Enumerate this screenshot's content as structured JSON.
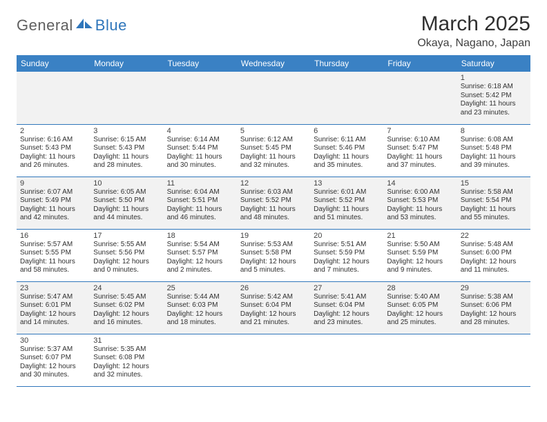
{
  "logo": {
    "part1": "General",
    "part2": "Blue",
    "mark_color": "#2f76bb",
    "text1_color": "#5f5f5f"
  },
  "title": "March 2025",
  "location": "Okaya, Nagano, Japan",
  "colors": {
    "header_bg": "#3a81c4",
    "header_text": "#ffffff",
    "row_border": "#2f76bb",
    "alt_row_bg": "#f2f2f2",
    "text": "#303030"
  },
  "weekdays": [
    "Sunday",
    "Monday",
    "Tuesday",
    "Wednesday",
    "Thursday",
    "Friday",
    "Saturday"
  ],
  "weeks": [
    [
      null,
      null,
      null,
      null,
      null,
      null,
      {
        "n": "1",
        "sr": "Sunrise: 6:18 AM",
        "ss": "Sunset: 5:42 PM",
        "d1": "Daylight: 11 hours",
        "d2": "and 23 minutes."
      }
    ],
    [
      {
        "n": "2",
        "sr": "Sunrise: 6:16 AM",
        "ss": "Sunset: 5:43 PM",
        "d1": "Daylight: 11 hours",
        "d2": "and 26 minutes."
      },
      {
        "n": "3",
        "sr": "Sunrise: 6:15 AM",
        "ss": "Sunset: 5:43 PM",
        "d1": "Daylight: 11 hours",
        "d2": "and 28 minutes."
      },
      {
        "n": "4",
        "sr": "Sunrise: 6:14 AM",
        "ss": "Sunset: 5:44 PM",
        "d1": "Daylight: 11 hours",
        "d2": "and 30 minutes."
      },
      {
        "n": "5",
        "sr": "Sunrise: 6:12 AM",
        "ss": "Sunset: 5:45 PM",
        "d1": "Daylight: 11 hours",
        "d2": "and 32 minutes."
      },
      {
        "n": "6",
        "sr": "Sunrise: 6:11 AM",
        "ss": "Sunset: 5:46 PM",
        "d1": "Daylight: 11 hours",
        "d2": "and 35 minutes."
      },
      {
        "n": "7",
        "sr": "Sunrise: 6:10 AM",
        "ss": "Sunset: 5:47 PM",
        "d1": "Daylight: 11 hours",
        "d2": "and 37 minutes."
      },
      {
        "n": "8",
        "sr": "Sunrise: 6:08 AM",
        "ss": "Sunset: 5:48 PM",
        "d1": "Daylight: 11 hours",
        "d2": "and 39 minutes."
      }
    ],
    [
      {
        "n": "9",
        "sr": "Sunrise: 6:07 AM",
        "ss": "Sunset: 5:49 PM",
        "d1": "Daylight: 11 hours",
        "d2": "and 42 minutes."
      },
      {
        "n": "10",
        "sr": "Sunrise: 6:05 AM",
        "ss": "Sunset: 5:50 PM",
        "d1": "Daylight: 11 hours",
        "d2": "and 44 minutes."
      },
      {
        "n": "11",
        "sr": "Sunrise: 6:04 AM",
        "ss": "Sunset: 5:51 PM",
        "d1": "Daylight: 11 hours",
        "d2": "and 46 minutes."
      },
      {
        "n": "12",
        "sr": "Sunrise: 6:03 AM",
        "ss": "Sunset: 5:52 PM",
        "d1": "Daylight: 11 hours",
        "d2": "and 48 minutes."
      },
      {
        "n": "13",
        "sr": "Sunrise: 6:01 AM",
        "ss": "Sunset: 5:52 PM",
        "d1": "Daylight: 11 hours",
        "d2": "and 51 minutes."
      },
      {
        "n": "14",
        "sr": "Sunrise: 6:00 AM",
        "ss": "Sunset: 5:53 PM",
        "d1": "Daylight: 11 hours",
        "d2": "and 53 minutes."
      },
      {
        "n": "15",
        "sr": "Sunrise: 5:58 AM",
        "ss": "Sunset: 5:54 PM",
        "d1": "Daylight: 11 hours",
        "d2": "and 55 minutes."
      }
    ],
    [
      {
        "n": "16",
        "sr": "Sunrise: 5:57 AM",
        "ss": "Sunset: 5:55 PM",
        "d1": "Daylight: 11 hours",
        "d2": "and 58 minutes."
      },
      {
        "n": "17",
        "sr": "Sunrise: 5:55 AM",
        "ss": "Sunset: 5:56 PM",
        "d1": "Daylight: 12 hours",
        "d2": "and 0 minutes."
      },
      {
        "n": "18",
        "sr": "Sunrise: 5:54 AM",
        "ss": "Sunset: 5:57 PM",
        "d1": "Daylight: 12 hours",
        "d2": "and 2 minutes."
      },
      {
        "n": "19",
        "sr": "Sunrise: 5:53 AM",
        "ss": "Sunset: 5:58 PM",
        "d1": "Daylight: 12 hours",
        "d2": "and 5 minutes."
      },
      {
        "n": "20",
        "sr": "Sunrise: 5:51 AM",
        "ss": "Sunset: 5:59 PM",
        "d1": "Daylight: 12 hours",
        "d2": "and 7 minutes."
      },
      {
        "n": "21",
        "sr": "Sunrise: 5:50 AM",
        "ss": "Sunset: 5:59 PM",
        "d1": "Daylight: 12 hours",
        "d2": "and 9 minutes."
      },
      {
        "n": "22",
        "sr": "Sunrise: 5:48 AM",
        "ss": "Sunset: 6:00 PM",
        "d1": "Daylight: 12 hours",
        "d2": "and 11 minutes."
      }
    ],
    [
      {
        "n": "23",
        "sr": "Sunrise: 5:47 AM",
        "ss": "Sunset: 6:01 PM",
        "d1": "Daylight: 12 hours",
        "d2": "and 14 minutes."
      },
      {
        "n": "24",
        "sr": "Sunrise: 5:45 AM",
        "ss": "Sunset: 6:02 PM",
        "d1": "Daylight: 12 hours",
        "d2": "and 16 minutes."
      },
      {
        "n": "25",
        "sr": "Sunrise: 5:44 AM",
        "ss": "Sunset: 6:03 PM",
        "d1": "Daylight: 12 hours",
        "d2": "and 18 minutes."
      },
      {
        "n": "26",
        "sr": "Sunrise: 5:42 AM",
        "ss": "Sunset: 6:04 PM",
        "d1": "Daylight: 12 hours",
        "d2": "and 21 minutes."
      },
      {
        "n": "27",
        "sr": "Sunrise: 5:41 AM",
        "ss": "Sunset: 6:04 PM",
        "d1": "Daylight: 12 hours",
        "d2": "and 23 minutes."
      },
      {
        "n": "28",
        "sr": "Sunrise: 5:40 AM",
        "ss": "Sunset: 6:05 PM",
        "d1": "Daylight: 12 hours",
        "d2": "and 25 minutes."
      },
      {
        "n": "29",
        "sr": "Sunrise: 5:38 AM",
        "ss": "Sunset: 6:06 PM",
        "d1": "Daylight: 12 hours",
        "d2": "and 28 minutes."
      }
    ],
    [
      {
        "n": "30",
        "sr": "Sunrise: 5:37 AM",
        "ss": "Sunset: 6:07 PM",
        "d1": "Daylight: 12 hours",
        "d2": "and 30 minutes."
      },
      {
        "n": "31",
        "sr": "Sunrise: 5:35 AM",
        "ss": "Sunset: 6:08 PM",
        "d1": "Daylight: 12 hours",
        "d2": "and 32 minutes."
      },
      null,
      null,
      null,
      null,
      null
    ]
  ]
}
